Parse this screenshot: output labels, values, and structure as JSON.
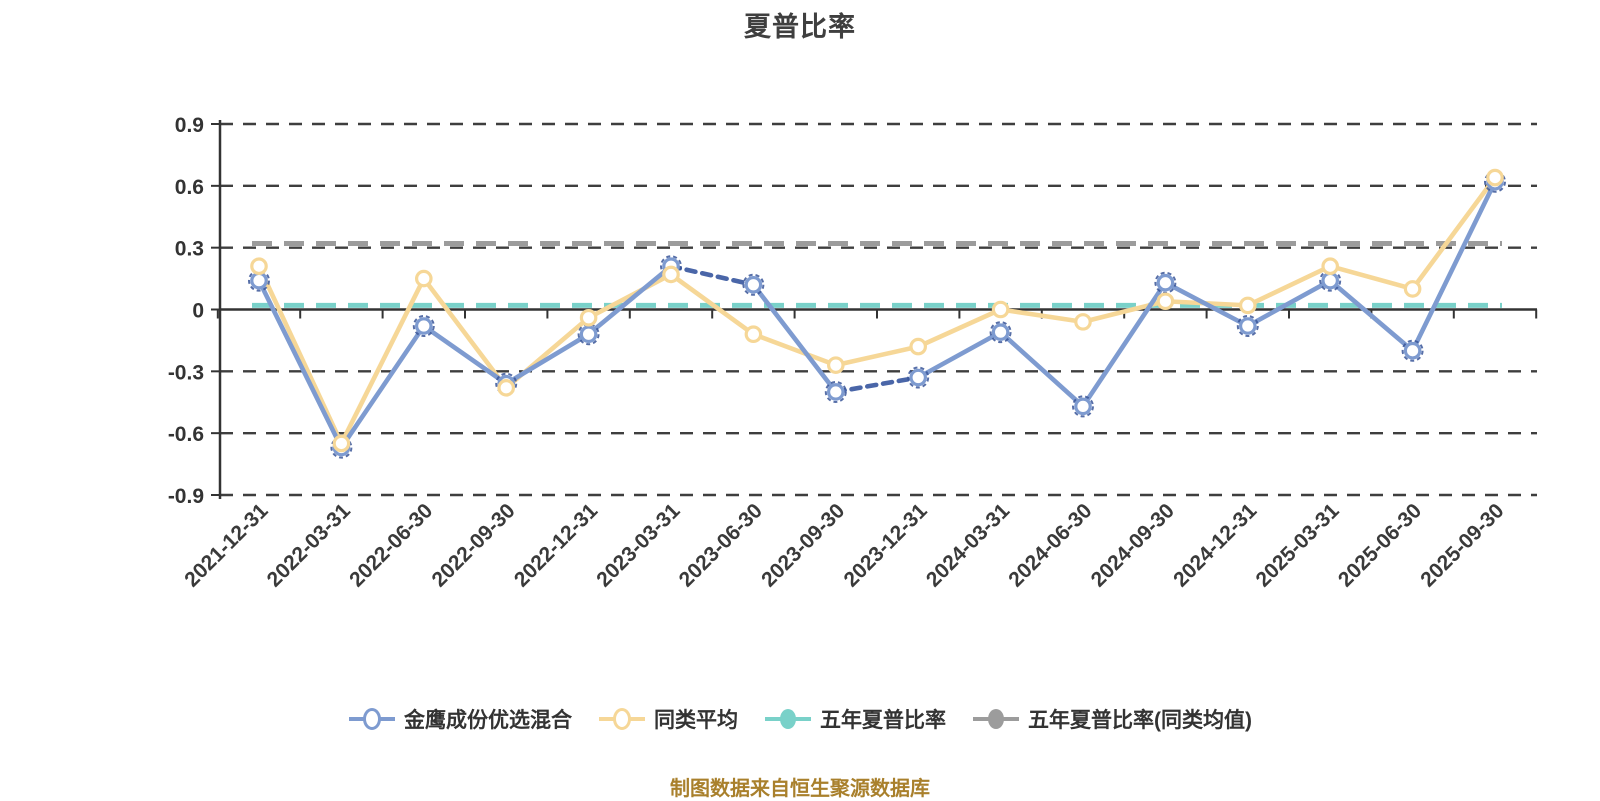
{
  "page": {
    "background": "#ffffff"
  },
  "chart_data": {
    "type": "line",
    "title": "夏普比率",
    "categories": [
      "2021-12-31",
      "2022-03-31",
      "2022-06-30",
      "2022-09-30",
      "2022-12-31",
      "2023-03-31",
      "2023-06-30",
      "2023-09-30",
      "2023-12-31",
      "2024-03-31",
      "2024-06-30",
      "2024-09-30",
      "2024-12-31",
      "2025-03-31",
      "2025-06-30",
      "2025-09-30"
    ],
    "series": [
      {
        "name": "金鹰成份优选混合",
        "color": "#7E9BD0",
        "line": "solid",
        "marker": "hollow-circle",
        "marker_ring": true,
        "dashed_segments": [
          [
            5,
            6
          ],
          [
            7,
            8
          ]
        ],
        "values": [
          0.14,
          -0.67,
          -0.08,
          -0.36,
          -0.12,
          0.21,
          0.12,
          -0.4,
          -0.33,
          -0.11,
          -0.47,
          0.13,
          -0.08,
          0.14,
          -0.2,
          0.62
        ]
      },
      {
        "name": "同类平均",
        "color": "#F6D797",
        "line": "solid",
        "marker": "hollow-circle",
        "marker_ring": false,
        "values": [
          0.21,
          -0.65,
          0.15,
          -0.38,
          -0.04,
          0.17,
          -0.12,
          -0.27,
          -0.18,
          0.0,
          -0.06,
          0.04,
          0.02,
          0.21,
          0.1,
          0.64
        ]
      },
      {
        "name": "五年夏普比率",
        "type": "hline",
        "color": "#79D1C9",
        "line": "dashed",
        "value": 0.02
      },
      {
        "name": "五年夏普比率(同类均值)",
        "type": "hline",
        "color": "#9C9C9C",
        "line": "dashed",
        "value": 0.32
      }
    ],
    "xlabel": "",
    "ylabel": "",
    "y_axis": {
      "min": -0.9,
      "max": 0.9,
      "ticks": [
        0.9,
        0.6,
        0.3,
        0,
        -0.3,
        -0.6,
        -0.9
      ]
    },
    "x_axis": {
      "label_rotation": 45
    },
    "grid": "horizontal-dashed",
    "legend_position": "bottom"
  },
  "legend": {
    "items": [
      {
        "label": "金鹰成份优选混合",
        "color": "#7E9BD0",
        "marker": "hollow"
      },
      {
        "label": "同类平均",
        "color": "#F6D797",
        "marker": "hollow"
      },
      {
        "label": "五年夏普比率",
        "color": "#79D1C9",
        "marker": "filled"
      },
      {
        "label": "五年夏普比率(同类均值)",
        "color": "#9C9C9C",
        "marker": "filled"
      }
    ]
  },
  "footer": {
    "text": "制图数据来自恒生聚源数据库"
  },
  "colors": {
    "blue": "#7E9BD0",
    "blue_dark": "#3A5699",
    "yellow": "#F6D797",
    "teal": "#79D1C9",
    "gray": "#9C9C9C",
    "axis": "#333333",
    "grid": "#3E3E3E",
    "text": "#333333",
    "title": "#3F3F3F",
    "footer": "#A9802C"
  }
}
